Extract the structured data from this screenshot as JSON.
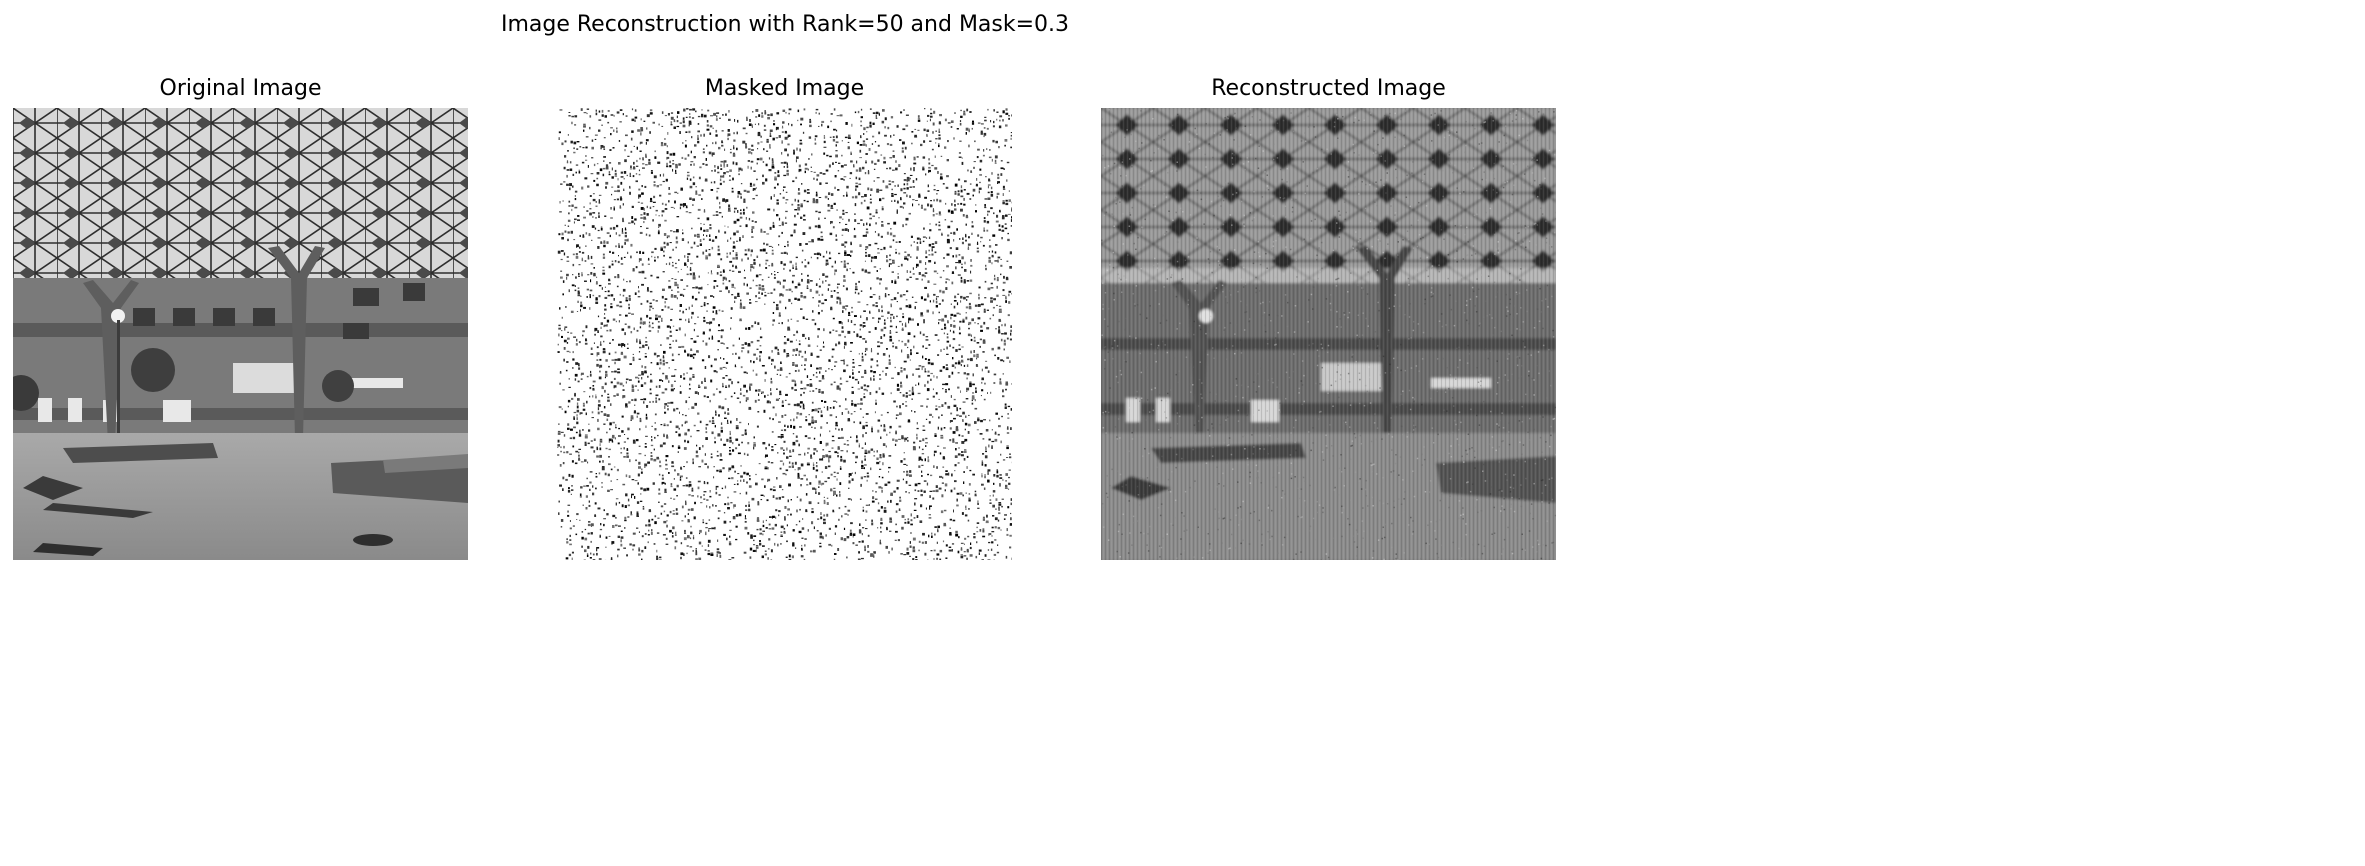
{
  "figure": {
    "title": "Image Reconstruction with Rank=50 and Mask=0.3",
    "panels": [
      {
        "title": "Original Image",
        "kind": "original"
      },
      {
        "title": "Masked Image",
        "kind": "masked"
      },
      {
        "title": "Reconstructed Image",
        "kind": "reconstructed"
      }
    ],
    "colormap": "grayscale",
    "mask_fill_color": "#ffffff"
  }
}
